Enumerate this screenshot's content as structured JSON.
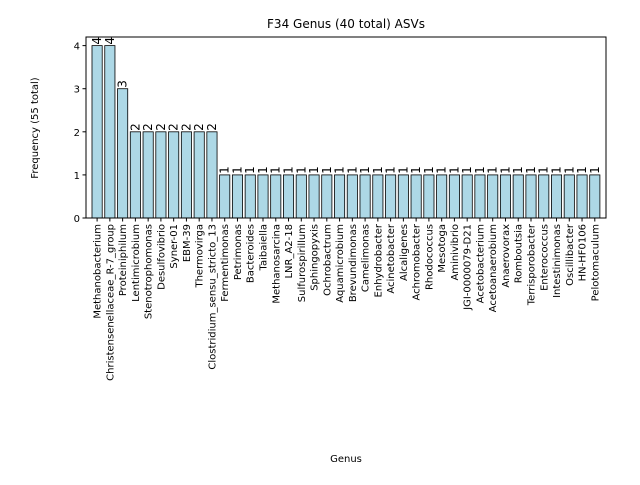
{
  "chart_data": {
    "type": "bar",
    "title": "F34 Genus (40 total) ASVs",
    "xlabel": "Genus",
    "ylabel": "Frequency (55 total)",
    "ylim": [
      0,
      4.2
    ],
    "yticks": [
      0,
      1,
      2,
      3,
      4
    ],
    "grid": false,
    "legend": "none",
    "colors": {
      "bar_fill": "#add8e6",
      "bar_edge": "#000000"
    },
    "categories": [
      "Methanobacterium",
      "Christensenellaceae_R-7_group",
      "Proteiniphilum",
      "Lentimicrobium",
      "Stenotrophomonas",
      "Desulfovibrio",
      "Syner-01",
      "EBM-39",
      "Thermovirga",
      "Clostridium_sensu_stricto_13",
      "Fermentimonas",
      "Petrimonas",
      "Bacteroides",
      "Taibaiella",
      "Methanosarcina",
      "LNR_A2-18",
      "Sulfurospirillum",
      "Sphingopyxis",
      "Ochrobactrum",
      "Aquamicrobium",
      "Brevundimonas",
      "Camelimonas",
      "Enhydrobacter",
      "Acinetobacter",
      "Alcaligenes",
      "Achromobacter",
      "Rhodococcus",
      "Mesotoga",
      "Aminivibrio",
      "JGI-0000079-D21",
      "Acetobacterium",
      "Acetoanaerobium",
      "Anaerovorax",
      "Romboutsia",
      "Terrisporobacter",
      "Enterococcus",
      "Intestinimonas",
      "Oscillibacter",
      "HN-HF0106",
      "Pelotomaculum"
    ],
    "values": [
      4,
      4,
      3,
      2,
      2,
      2,
      2,
      2,
      2,
      2,
      1,
      1,
      1,
      1,
      1,
      1,
      1,
      1,
      1,
      1,
      1,
      1,
      1,
      1,
      1,
      1,
      1,
      1,
      1,
      1,
      1,
      1,
      1,
      1,
      1,
      1,
      1,
      1,
      1,
      1
    ],
    "data_labels": [
      "4",
      "4",
      "3",
      "2",
      "2",
      "2",
      "2",
      "2",
      "2",
      "2",
      "1",
      "1",
      "1",
      "1",
      "1",
      "1",
      "1",
      "1",
      "1",
      "1",
      "1",
      "1",
      "1",
      "1",
      "1",
      "1",
      "1",
      "1",
      "1",
      "1",
      "1",
      "1",
      "1",
      "1",
      "1",
      "1",
      "1",
      "1",
      "1",
      "1"
    ]
  }
}
